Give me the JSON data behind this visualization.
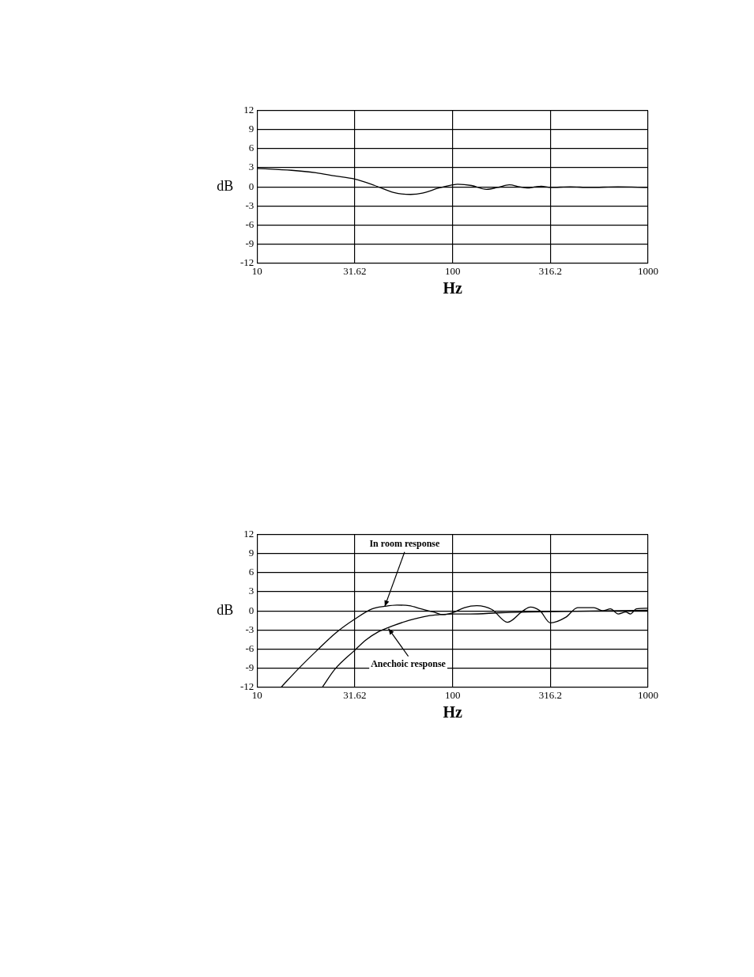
{
  "chart_data": [
    {
      "type": "line",
      "xlabel": "Hz",
      "ylabel": "dB",
      "log": "x",
      "grid": true,
      "xlim": [
        10,
        1000
      ],
      "ylim": [
        -12,
        12
      ],
      "xticks": [
        10,
        31.62,
        100,
        316.2,
        1000
      ],
      "yticks": [
        -12,
        -9,
        -6,
        -3,
        0,
        3,
        6,
        9,
        12
      ],
      "series": [
        {
          "color": "#000000",
          "x": [
            10,
            15,
            20,
            25,
            31.62,
            40,
            50,
            61,
            70,
            85,
            100,
            106,
            125,
            149,
            170,
            195,
            220,
            241,
            265,
            284,
            316,
            400,
            500,
            700,
            1000
          ],
          "values": [
            2.9,
            2.6,
            2.2,
            1.7,
            1.2,
            0.2,
            -0.9,
            -1.2,
            -1.0,
            -0.2,
            0.3,
            0.4,
            0.2,
            -0.4,
            -0.1,
            0.3,
            0,
            -0.2,
            0,
            0.1,
            -0.1,
            0,
            -0.1,
            0,
            -0.1
          ]
        }
      ]
    },
    {
      "type": "line",
      "xlabel": "Hz",
      "ylabel": "dB",
      "log": "x",
      "grid": true,
      "xlim": [
        10,
        1000
      ],
      "ylim": [
        -12,
        12
      ],
      "xticks": [
        10,
        31.62,
        100,
        316.2,
        1000
      ],
      "yticks": [
        -12,
        -9,
        -6,
        -3,
        0,
        3,
        6,
        9,
        12
      ],
      "annotations": [
        {
          "text": "In room response",
          "x": 45,
          "y": 0.7
        },
        {
          "text": "Anechoic response",
          "x": 47,
          "y": -2.8
        }
      ],
      "series": [
        {
          "color": "#000000",
          "x": [
            13.3,
            16.3,
            20.3,
            25.2,
            31.62,
            38.8,
            45,
            51.9,
            60,
            69,
            80,
            89.5,
            100,
            115,
            133,
            159,
            191,
            229,
            250,
            280,
            316,
            380,
            436,
            527,
            588,
            642,
            703,
            769,
            812,
            870,
            1000
          ],
          "values": [
            -12,
            -9.1,
            -6.2,
            -3.5,
            -1.3,
            0.3,
            0.7,
            0.9,
            0.8,
            0.3,
            -0.2,
            -0.6,
            -0.3,
            0.5,
            0.8,
            0.2,
            -1.8,
            0,
            0.6,
            0,
            -1.9,
            -1.0,
            0.5,
            0.5,
            0,
            0.3,
            -0.5,
            -0.2,
            -0.5,
            0.3,
            0.4
          ]
        },
        {
          "color": "#000000",
          "x": [
            21.6,
            25,
            31.62,
            36,
            41.7,
            50,
            59.9,
            74.5,
            86,
            100,
            123,
            178,
            366,
            1000
          ],
          "values": [
            -12,
            -9.2,
            -6.2,
            -4.6,
            -3.3,
            -2.3,
            -1.5,
            -0.8,
            -0.6,
            -0.5,
            -0.5,
            -0.3,
            -0.1,
            0.1
          ]
        }
      ]
    }
  ]
}
